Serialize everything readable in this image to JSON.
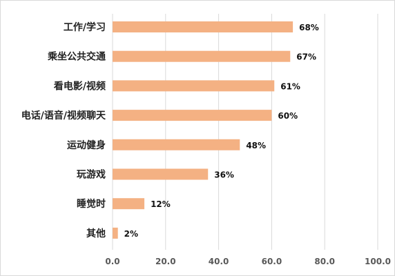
{
  "chart_data": {
    "type": "bar",
    "orientation": "horizontal",
    "categories": [
      "工作/学习",
      "乘坐公共交通",
      "看电影/视频",
      "电话/语音/视频聊天",
      "运动健身",
      "玩游戏",
      "睡觉时",
      "其他"
    ],
    "values": [
      68,
      67,
      61,
      60,
      48,
      36,
      12,
      2
    ],
    "data_labels": [
      "68%",
      "67%",
      "61%",
      "60%",
      "48%",
      "36%",
      "12%",
      "2%"
    ],
    "x_ticks": [
      "0.0",
      "20.0",
      "40.0",
      "60.0",
      "80.0",
      "100.0"
    ],
    "xlim": [
      0,
      100
    ],
    "grid": "vertical",
    "legend": "none",
    "bar_color": "#f4b183",
    "grid_color": "#d9d9d9"
  }
}
